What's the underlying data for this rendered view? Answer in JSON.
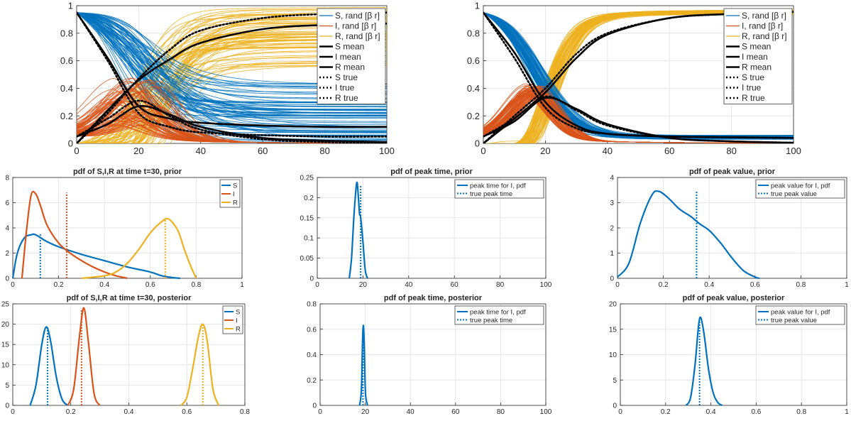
{
  "colors": {
    "S": "#0072BD",
    "I": "#D95319",
    "R": "#EDB120",
    "mean": "#000000",
    "grid": "#e6e6e6"
  },
  "chart_data": [
    {
      "id": "trajectories_prior",
      "type": "line",
      "title": "",
      "xlabel": "",
      "ylabel": "",
      "xlim": [
        0,
        100
      ],
      "ylim": [
        0,
        1
      ],
      "xticks": [
        "0",
        "20",
        "40",
        "60",
        "80",
        "100"
      ],
      "yticks": [
        "0",
        "0.2",
        "0.4",
        "0.6",
        "0.8",
        "1"
      ],
      "grid": true,
      "legend_position": "right",
      "legend": [
        "S, rand [β r]",
        "I, rand [β r]",
        "R, rand [β r]",
        "S mean",
        "I mean",
        "R mean",
        "S true",
        "I true",
        "R true"
      ],
      "ensemble": {
        "S_final_range": [
          0.0,
          0.45
        ],
        "I_peak_range": [
          0.1,
          0.45
        ],
        "R_final_range": [
          0.55,
          1.0
        ]
      },
      "series": [
        {
          "name": "S mean",
          "x": [
            0,
            10,
            20,
            30,
            40,
            60,
            80,
            100
          ],
          "values": [
            0.95,
            0.62,
            0.27,
            0.18,
            0.15,
            0.13,
            0.12,
            0.12
          ]
        },
        {
          "name": "I mean",
          "x": [
            0,
            10,
            20,
            30,
            40,
            60,
            80,
            100
          ],
          "values": [
            0.05,
            0.14,
            0.27,
            0.21,
            0.12,
            0.04,
            0.02,
            0.01
          ]
        },
        {
          "name": "R mean",
          "x": [
            0,
            10,
            20,
            30,
            40,
            60,
            80,
            100
          ],
          "values": [
            0.0,
            0.24,
            0.46,
            0.61,
            0.73,
            0.83,
            0.86,
            0.87
          ]
        },
        {
          "name": "S true",
          "x": [
            0,
            10,
            20,
            30,
            40,
            60,
            80,
            100
          ],
          "values": [
            0.95,
            0.6,
            0.22,
            0.12,
            0.08,
            0.06,
            0.05,
            0.05
          ]
        },
        {
          "name": "I true",
          "x": [
            0,
            10,
            20,
            30,
            40,
            60,
            80,
            100
          ],
          "values": [
            0.05,
            0.18,
            0.31,
            0.2,
            0.1,
            0.03,
            0.01,
            0.0
          ]
        },
        {
          "name": "R true",
          "x": [
            0,
            10,
            20,
            30,
            40,
            60,
            80,
            100
          ],
          "values": [
            0.0,
            0.22,
            0.47,
            0.68,
            0.82,
            0.91,
            0.94,
            0.95
          ]
        }
      ]
    },
    {
      "id": "trajectories_posterior",
      "type": "line",
      "title": "",
      "xlabel": "",
      "ylabel": "",
      "xlim": [
        0,
        100
      ],
      "ylim": [
        0,
        1
      ],
      "xticks": [
        "0",
        "20",
        "40",
        "60",
        "80",
        "100"
      ],
      "yticks": [
        "0",
        "0.2",
        "0.4",
        "0.6",
        "0.8",
        "1"
      ],
      "grid": true,
      "legend_position": "right",
      "legend": [
        "S, rand [β r]",
        "I, rand [β r]",
        "R, rand [β r]",
        "S mean",
        "I mean",
        "R mean",
        "S true",
        "I true",
        "R true"
      ],
      "ensemble": {
        "S_final_range": [
          0.03,
          0.06
        ],
        "I_peak_range": [
          0.3,
          0.4
        ],
        "R_final_range": [
          0.93,
          0.97
        ]
      },
      "series": [
        {
          "name": "S mean",
          "x": [
            0,
            10,
            20,
            30,
            40,
            60,
            80,
            100
          ],
          "values": [
            0.95,
            0.66,
            0.3,
            0.13,
            0.07,
            0.05,
            0.045,
            0.04
          ]
        },
        {
          "name": "I mean",
          "x": [
            0,
            10,
            20,
            30,
            40,
            60,
            80,
            100
          ],
          "values": [
            0.05,
            0.16,
            0.33,
            0.25,
            0.14,
            0.04,
            0.015,
            0.005
          ]
        },
        {
          "name": "R mean",
          "x": [
            0,
            10,
            20,
            30,
            40,
            60,
            80,
            100
          ],
          "values": [
            0.0,
            0.18,
            0.37,
            0.62,
            0.79,
            0.91,
            0.94,
            0.955
          ]
        },
        {
          "name": "S true",
          "x": [
            0,
            10,
            20,
            30,
            40,
            60,
            80,
            100
          ],
          "values": [
            0.95,
            0.62,
            0.26,
            0.11,
            0.07,
            0.05,
            0.045,
            0.04
          ]
        },
        {
          "name": "I true",
          "x": [
            0,
            10,
            20,
            30,
            40,
            60,
            80,
            100
          ],
          "values": [
            0.05,
            0.18,
            0.34,
            0.24,
            0.13,
            0.04,
            0.015,
            0.005
          ]
        },
        {
          "name": "R true",
          "x": [
            0,
            10,
            20,
            30,
            40,
            60,
            80,
            100
          ],
          "values": [
            0.0,
            0.2,
            0.4,
            0.65,
            0.8,
            0.91,
            0.94,
            0.955
          ]
        }
      ]
    },
    {
      "id": "pdf_sir_prior",
      "type": "line",
      "title": "pdf of S,I,R at time t=30, prior",
      "xlabel": "",
      "ylabel": "",
      "xlim": [
        0,
        1
      ],
      "ylim": [
        0,
        8
      ],
      "xticks": [
        "0",
        "0.2",
        "0.4",
        "0.6",
        "0.8",
        "1"
      ],
      "yticks": [
        "0",
        "2",
        "4",
        "6",
        "8"
      ],
      "grid": true,
      "legend_position": "top-right",
      "legend": [
        "S",
        "I",
        "R"
      ],
      "true_markers": [
        {
          "series": "S",
          "x": 0.12,
          "height": 3.5
        },
        {
          "series": "I",
          "x": 0.235,
          "height": 6.8
        },
        {
          "series": "R",
          "x": 0.665,
          "height": 4.7
        }
      ],
      "series": [
        {
          "name": "S",
          "x": [
            0.0,
            0.02,
            0.05,
            0.08,
            0.1,
            0.15,
            0.2,
            0.3,
            0.4,
            0.5,
            0.6,
            0.65,
            0.7,
            0.73
          ],
          "values": [
            0.0,
            2.0,
            3.2,
            3.45,
            3.45,
            2.9,
            2.5,
            1.9,
            1.4,
            0.9,
            0.5,
            0.2,
            0.05,
            0.0
          ]
        },
        {
          "name": "I",
          "x": [
            0.04,
            0.06,
            0.08,
            0.1,
            0.12,
            0.15,
            0.2,
            0.25,
            0.3,
            0.35,
            0.4,
            0.45,
            0.5
          ],
          "values": [
            0.0,
            3.8,
            6.6,
            6.7,
            5.8,
            4.2,
            2.8,
            2.0,
            1.4,
            0.9,
            0.5,
            0.2,
            0.0
          ]
        },
        {
          "name": "R",
          "x": [
            0.3,
            0.4,
            0.45,
            0.5,
            0.55,
            0.6,
            0.65,
            0.68,
            0.72,
            0.75,
            0.78,
            0.8
          ],
          "values": [
            0.0,
            0.2,
            0.5,
            1.2,
            2.3,
            3.6,
            4.5,
            4.7,
            3.8,
            2.2,
            0.8,
            0.0
          ]
        }
      ]
    },
    {
      "id": "pdf_peak_time_prior",
      "type": "line",
      "title": "pdf of peak time, prior",
      "xlabel": "",
      "ylabel": "",
      "xlim": [
        0,
        100
      ],
      "ylim": [
        0,
        0.25
      ],
      "xticks": [
        "0",
        "20",
        "40",
        "60",
        "80",
        "100"
      ],
      "yticks": [
        "0",
        "0.05",
        "0.1",
        "0.15",
        "0.2",
        "0.25"
      ],
      "grid": true,
      "legend_position": "top-right",
      "legend": [
        "peak time for I, pdf",
        "true peak time"
      ],
      "true_markers": [
        {
          "series": "peak time for I, pdf",
          "x": 19,
          "height": 0.232
        }
      ],
      "series": [
        {
          "name": "peak time for I, pdf",
          "x": [
            14,
            15,
            16,
            17,
            17.5,
            18,
            18.5,
            19,
            20,
            21,
            22
          ],
          "values": [
            0.0,
            0.05,
            0.15,
            0.225,
            0.236,
            0.2,
            0.16,
            0.15,
            0.09,
            0.02,
            0.0
          ]
        }
      ]
    },
    {
      "id": "pdf_peak_value_prior",
      "type": "line",
      "title": "pdf of peak value, prior",
      "xlabel": "",
      "ylabel": "",
      "xlim": [
        0,
        1
      ],
      "ylim": [
        0,
        4
      ],
      "xticks": [
        "0",
        "0.2",
        "0.4",
        "0.6",
        "0.8",
        "1"
      ],
      "yticks": [
        "0",
        "1",
        "2",
        "3",
        "4"
      ],
      "grid": true,
      "legend_position": "top-right",
      "legend": [
        "peak value for I, pdf",
        "true peak value"
      ],
      "true_markers": [
        {
          "series": "peak value for I, pdf",
          "x": 0.345,
          "height": 3.45
        }
      ],
      "series": [
        {
          "name": "peak value for I, pdf",
          "x": [
            0.0,
            0.05,
            0.1,
            0.15,
            0.18,
            0.22,
            0.27,
            0.32,
            0.36,
            0.4,
            0.45,
            0.5,
            0.55,
            0.6,
            0.62
          ],
          "values": [
            0.05,
            0.6,
            2.2,
            3.3,
            3.45,
            3.2,
            2.75,
            2.45,
            2.15,
            1.9,
            1.4,
            0.8,
            0.3,
            0.05,
            0.0
          ]
        }
      ]
    },
    {
      "id": "pdf_sir_posterior",
      "type": "line",
      "title": "pdf of S,I,R at time t=30, posterior",
      "xlabel": "",
      "ylabel": "",
      "xlim": [
        0,
        0.8
      ],
      "ylim": [
        0,
        25
      ],
      "xticks": [
        "0",
        "0.2",
        "0.4",
        "0.6",
        "0.8"
      ],
      "yticks": [
        "0",
        "5",
        "10",
        "15",
        "20",
        "25"
      ],
      "grid": true,
      "legend_position": "top-right",
      "legend": [
        "S",
        "I",
        "R"
      ],
      "true_markers": [
        {
          "series": "S",
          "x": 0.12,
          "height": 19.2
        },
        {
          "series": "I",
          "x": 0.237,
          "height": 23.5
        },
        {
          "series": "R",
          "x": 0.655,
          "height": 20.0
        }
      ],
      "series": [
        {
          "name": "S",
          "x": [
            0.06,
            0.08,
            0.1,
            0.115,
            0.13,
            0.15,
            0.17,
            0.19
          ],
          "values": [
            0.0,
            5.0,
            15.0,
            19.3,
            16.0,
            7.0,
            1.5,
            0.0
          ]
        },
        {
          "name": "I",
          "x": [
            0.19,
            0.21,
            0.23,
            0.245,
            0.26,
            0.28,
            0.3
          ],
          "values": [
            0.0,
            4.0,
            17.0,
            24.0,
            16.0,
            3.0,
            0.0
          ]
        },
        {
          "name": "R",
          "x": [
            0.58,
            0.6,
            0.62,
            0.64,
            0.655,
            0.67,
            0.69,
            0.71
          ],
          "values": [
            0.0,
            2.0,
            9.0,
            17.0,
            20.0,
            16.0,
            4.0,
            0.0
          ]
        }
      ]
    },
    {
      "id": "pdf_peak_time_posterior",
      "type": "line",
      "title": "pdf of peak time, posterior",
      "xlabel": "",
      "ylabel": "",
      "xlim": [
        0,
        100
      ],
      "ylim": [
        0,
        0.8
      ],
      "xticks": [
        "0",
        "20",
        "40",
        "60",
        "80",
        "100"
      ],
      "yticks": [
        "0",
        "0.2",
        "0.4",
        "0.6",
        "0.8"
      ],
      "grid": true,
      "legend_position": "top-right",
      "legend": [
        "peak time for I, pdf",
        "true peak time"
      ],
      "true_markers": [
        {
          "series": "peak time for I, pdf",
          "x": 19,
          "height": 0.6
        }
      ],
      "series": [
        {
          "name": "peak time for I, pdf",
          "x": [
            17.5,
            18.3,
            18.8,
            19.2,
            19.6,
            20.1,
            21
          ],
          "values": [
            0.0,
            0.12,
            0.5,
            0.63,
            0.45,
            0.1,
            0.0
          ]
        }
      ]
    },
    {
      "id": "pdf_peak_value_posterior",
      "type": "line",
      "title": "pdf of peak value, posterior",
      "xlabel": "",
      "ylabel": "",
      "xlim": [
        0,
        1
      ],
      "ylim": [
        0,
        20
      ],
      "xticks": [
        "0",
        "0.2",
        "0.4",
        "0.6",
        "0.8",
        "1"
      ],
      "yticks": [
        "0",
        "5",
        "10",
        "15",
        "20"
      ],
      "grid": true,
      "legend_position": "top-right",
      "legend": [
        "peak value for I, pdf",
        "true peak value"
      ],
      "true_markers": [
        {
          "series": "peak value for I, pdf",
          "x": 0.35,
          "height": 16.5
        }
      ],
      "series": [
        {
          "name": "peak value for I, pdf",
          "x": [
            0.29,
            0.31,
            0.33,
            0.345,
            0.355,
            0.37,
            0.39,
            0.41,
            0.43,
            0.45
          ],
          "values": [
            0.0,
            1.5,
            8.0,
            15.5,
            17.3,
            14.0,
            7.0,
            2.5,
            0.6,
            0.0
          ]
        }
      ]
    }
  ]
}
